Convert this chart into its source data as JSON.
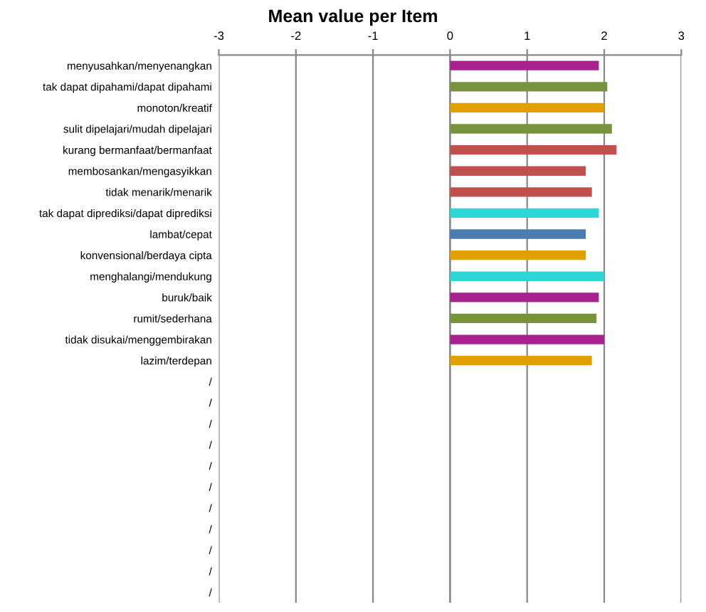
{
  "chart_data": {
    "type": "bar",
    "orientation": "horizontal",
    "title": "Mean value per Item",
    "categories": [
      "menyusahkan/menyenangkan",
      "tak dapat dipahami/dapat dipahami",
      "monoton/kreatif",
      "sulit dipelajari/mudah dipelajari",
      "kurang bermanfaat/bermanfaat",
      "membosankan/mengasyikkan",
      "tidak menarik/menarik",
      "tak dapat diprediksi/dapat diprediksi",
      "lambat/cepat",
      "konvensional/berdaya cipta",
      "menghalangi/mendukung",
      "buruk/baik",
      "rumit/sederhana",
      "tidak disukai/menggembirakan",
      "lazim/terdepan",
      "/",
      "/",
      "/",
      "/",
      "/",
      "/",
      "/",
      "/",
      "/",
      "/",
      "/"
    ],
    "values": [
      1.93,
      2.04,
      2.0,
      2.1,
      2.16,
      1.76,
      1.84,
      1.93,
      1.76,
      1.76,
      2.0,
      1.93,
      1.9,
      2.0,
      1.84,
      null,
      null,
      null,
      null,
      null,
      null,
      null,
      null,
      null,
      null,
      null
    ],
    "colors": [
      "#a8218e",
      "#77933c",
      "#e0a000",
      "#77933c",
      "#c0504d",
      "#c0504d",
      "#c0504d",
      "#2dd6d6",
      "#4a7eb0",
      "#e0a000",
      "#2dd6d6",
      "#a8218e",
      "#77933c",
      "#a8218e",
      "#e0a000",
      "#a8218e",
      "#a8218e",
      "#a8218e",
      "#a8218e",
      "#a8218e",
      "#a8218e",
      "#a8218e",
      "#a8218e",
      "#a8218e",
      "#a8218e",
      "#a8218e"
    ],
    "xlim": [
      -3,
      3
    ],
    "xticks": [
      -3,
      -2,
      -1,
      0,
      1,
      2,
      3
    ],
    "grid": "x"
  }
}
